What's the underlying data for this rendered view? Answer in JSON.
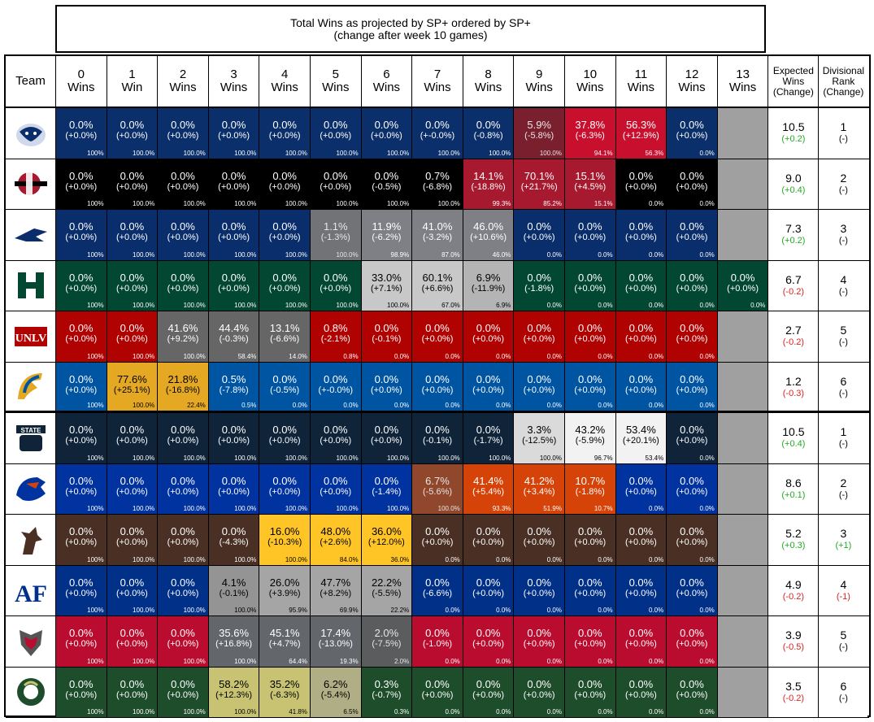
{
  "chart_data": {
    "type": "table",
    "title": "Total Wins as projected by SP+ ordered by SP+",
    "subtitle": "(change after week 10 games)",
    "headers": {
      "team": "Team",
      "wins": [
        [
          "0",
          "Wins"
        ],
        [
          "1",
          "Win"
        ],
        [
          "2",
          "Wins"
        ],
        [
          "3",
          "Wins"
        ],
        [
          "4",
          "Wins"
        ],
        [
          "5",
          "Wins"
        ],
        [
          "6",
          "Wins"
        ],
        [
          "7",
          "Wins"
        ],
        [
          "8",
          "Wins"
        ],
        [
          "9",
          "Wins"
        ],
        [
          "10",
          "Wins"
        ],
        [
          "11",
          "Wins"
        ],
        [
          "12",
          "Wins"
        ],
        [
          "13",
          "Wins"
        ]
      ],
      "expected": [
        "Expected",
        "Wins",
        "(Change)"
      ],
      "rank": [
        "Divisional",
        "Rank",
        "(Change)"
      ]
    },
    "colors": {
      "positive": "#22aa22",
      "negative": "#dd2222",
      "neutral": "#000000",
      "empty": "#a0a0a0"
    },
    "teams": [
      {
        "logo": "fresno-state-bulldog-logo",
        "base": "#0b2f6a",
        "hi": "#c8102e",
        "hi_text": "#ffffff",
        "expected": "10.5",
        "exp_change": "(+0.2)",
        "exp_sign": "pos",
        "rank": "1",
        "rank_change": "(-)",
        "rank_sign": "neu",
        "cells": [
          [
            "0.0%",
            "(+0.0%)",
            "100%"
          ],
          [
            "0.0%",
            "(+0.0%)",
            "100.0%"
          ],
          [
            "0.0%",
            "(+0.0%)",
            "100.0%"
          ],
          [
            "0.0%",
            "(+0.0%)",
            "100.0%"
          ],
          [
            "0.0%",
            "(+0.0%)",
            "100.0%"
          ],
          [
            "0.0%",
            "(+0.0%)",
            "100.0%"
          ],
          [
            "0.0%",
            "(+0.0%)",
            "100.0%"
          ],
          [
            "0.0%",
            "(+-0.0%)",
            "100.0%"
          ],
          [
            "0.0%",
            "(-0.8%)",
            "100.0%"
          ],
          [
            "5.9%",
            "(-5.8%)",
            "100.0%"
          ],
          [
            "37.8%",
            "(-6.3%)",
            "94.1%"
          ],
          [
            "56.3%",
            "(+12.9%)",
            "56.3%"
          ],
          [
            "0.0%",
            "(+0.0%)",
            "0.0%"
          ],
          null
        ]
      },
      {
        "logo": "san-diego-state-logo",
        "base": "#000000",
        "hi": "#a6192e",
        "hi_text": "#ffffff",
        "expected": "9.0",
        "exp_change": "(+0.4)",
        "exp_sign": "pos",
        "rank": "2",
        "rank_change": "(-)",
        "rank_sign": "neu",
        "cells": [
          [
            "0.0%",
            "(+0.0%)",
            "100%"
          ],
          [
            "0.0%",
            "(+0.0%)",
            "100.0%"
          ],
          [
            "0.0%",
            "(+0.0%)",
            "100.0%"
          ],
          [
            "0.0%",
            "(+0.0%)",
            "100.0%"
          ],
          [
            "0.0%",
            "(+0.0%)",
            "100.0%"
          ],
          [
            "0.0%",
            "(+0.0%)",
            "100.0%"
          ],
          [
            "0.0%",
            "(-0.5%)",
            "100.0%"
          ],
          [
            "0.7%",
            "(-6.8%)",
            "100.0%"
          ],
          [
            "14.1%",
            "(-18.8%)",
            "99.3%"
          ],
          [
            "70.1%",
            "(+21.7%)",
            "85.2%"
          ],
          [
            "15.1%",
            "(+4.5%)",
            "15.1%"
          ],
          [
            "0.0%",
            "(+0.0%)",
            "0.0%"
          ],
          [
            "0.0%",
            "(+0.0%)",
            "0.0%"
          ],
          null
        ]
      },
      {
        "logo": "nevada-wolf-logo",
        "base": "#0a2e6c",
        "hi": "#7e8086",
        "hi_text": "#ffffff",
        "expected": "7.3",
        "exp_change": "(+0.2)",
        "exp_sign": "pos",
        "rank": "3",
        "rank_change": "(-)",
        "rank_sign": "neu",
        "cells": [
          [
            "0.0%",
            "(+0.0%)",
            "100%"
          ],
          [
            "0.0%",
            "(+0.0%)",
            "100.0%"
          ],
          [
            "0.0%",
            "(+0.0%)",
            "100.0%"
          ],
          [
            "0.0%",
            "(+0.0%)",
            "100.0%"
          ],
          [
            "0.0%",
            "(+0.0%)",
            "100.0%"
          ],
          [
            "1.1%",
            "(-1.3%)",
            "100.0%"
          ],
          [
            "11.9%",
            "(-6.2%)",
            "98.9%"
          ],
          [
            "41.0%",
            "(-3.2%)",
            "87.0%"
          ],
          [
            "46.0%",
            "(+10.6%)",
            "46.0%"
          ],
          [
            "0.0%",
            "(+0.0%)",
            "0.0%"
          ],
          [
            "0.0%",
            "(+0.0%)",
            "0.0%"
          ],
          [
            "0.0%",
            "(+0.0%)",
            "0.0%"
          ],
          [
            "0.0%",
            "(+0.0%)",
            "0.0%"
          ],
          null
        ]
      },
      {
        "logo": "hawaii-h-logo",
        "base": "#024731",
        "hi": "#c8c8c8",
        "hi_text": "#000000",
        "expected": "6.7",
        "exp_change": "(-0.2)",
        "exp_sign": "neg",
        "rank": "4",
        "rank_change": "(-)",
        "rank_sign": "neu",
        "cells": [
          [
            "0.0%",
            "(+0.0%)",
            "100%"
          ],
          [
            "0.0%",
            "(+0.0%)",
            "100.0%"
          ],
          [
            "0.0%",
            "(+0.0%)",
            "100.0%"
          ],
          [
            "0.0%",
            "(+0.0%)",
            "100.0%"
          ],
          [
            "0.0%",
            "(+0.0%)",
            "100.0%"
          ],
          [
            "0.0%",
            "(+0.0%)",
            "100.0%"
          ],
          [
            "33.0%",
            "(+7.1%)",
            "100.0%"
          ],
          [
            "60.1%",
            "(+6.6%)",
            "67.0%"
          ],
          [
            "6.9%",
            "(-11.9%)",
            "6.9%"
          ],
          [
            "0.0%",
            "(-1.8%)",
            "0.0%"
          ],
          [
            "0.0%",
            "(+0.0%)",
            "0.0%"
          ],
          [
            "0.0%",
            "(+0.0%)",
            "0.0%"
          ],
          [
            "0.0%",
            "(+0.0%)",
            "0.0%"
          ],
          [
            "0.0%",
            "(+0.0%)",
            "0.0%"
          ]
        ]
      },
      {
        "logo": "unlv-logo",
        "base": "#b10202",
        "hi": "#666666",
        "hi_text": "#ffffff",
        "expected": "2.7",
        "exp_change": "(-0.2)",
        "exp_sign": "neg",
        "rank": "5",
        "rank_change": "(-)",
        "rank_sign": "neu",
        "cells": [
          [
            "0.0%",
            "(+0.0%)",
            "100%"
          ],
          [
            "0.0%",
            "(+0.0%)",
            "100.0%"
          ],
          [
            "41.6%",
            "(+9.2%)",
            "100.0%"
          ],
          [
            "44.4%",
            "(-0.3%)",
            "58.4%"
          ],
          [
            "13.1%",
            "(-6.6%)",
            "14.0%"
          ],
          [
            "0.8%",
            "(-2.1%)",
            "0.8%"
          ],
          [
            "0.0%",
            "(-0.1%)",
            "0.0%"
          ],
          [
            "0.0%",
            "(+0.0%)",
            "0.0%"
          ],
          [
            "0.0%",
            "(+0.0%)",
            "0.0%"
          ],
          [
            "0.0%",
            "(+0.0%)",
            "0.0%"
          ],
          [
            "0.0%",
            "(+0.0%)",
            "0.0%"
          ],
          [
            "0.0%",
            "(+0.0%)",
            "0.0%"
          ],
          [
            "0.0%",
            "(+0.0%)",
            "0.0%"
          ],
          null
        ]
      },
      {
        "logo": "san-jose-state-spartan-logo",
        "base": "#0055a2",
        "hi": "#e5a823",
        "hi_text": "#000000",
        "expected": "1.2",
        "exp_change": "(-0.3)",
        "exp_sign": "neg",
        "rank": "6",
        "rank_change": "(-)",
        "rank_sign": "neu",
        "cells": [
          [
            "0.0%",
            "(+0.0%)",
            "100%"
          ],
          [
            "77.6%",
            "(+25.1%)",
            "100.0%"
          ],
          [
            "21.8%",
            "(-16.8%)",
            "22.4%"
          ],
          [
            "0.5%",
            "(-7.8%)",
            "0.5%"
          ],
          [
            "0.0%",
            "(-0.5%)",
            "0.0%"
          ],
          [
            "0.0%",
            "(+-0.0%)",
            "0.0%"
          ],
          [
            "0.0%",
            "(+0.0%)",
            "0.0%"
          ],
          [
            "0.0%",
            "(+0.0%)",
            "0.0%"
          ],
          [
            "0.0%",
            "(+0.0%)",
            "0.0%"
          ],
          [
            "0.0%",
            "(+0.0%)",
            "0.0%"
          ],
          [
            "0.0%",
            "(+0.0%)",
            "0.0%"
          ],
          [
            "0.0%",
            "(+0.0%)",
            "0.0%"
          ],
          [
            "0.0%",
            "(+0.0%)",
            "0.0%"
          ],
          null
        ]
      },
      {
        "logo": "utah-state-logo",
        "base": "#0f2439",
        "hi": "#f2f2f2",
        "hi_text": "#000000",
        "expected": "10.5",
        "exp_change": "(+0.4)",
        "exp_sign": "pos",
        "rank": "1",
        "rank_change": "(-)",
        "rank_sign": "neu",
        "cells": [
          [
            "0.0%",
            "(+0.0%)",
            "100%"
          ],
          [
            "0.0%",
            "(+0.0%)",
            "100.0%"
          ],
          [
            "0.0%",
            "(+0.0%)",
            "100.0%"
          ],
          [
            "0.0%",
            "(+0.0%)",
            "100.0%"
          ],
          [
            "0.0%",
            "(+0.0%)",
            "100.0%"
          ],
          [
            "0.0%",
            "(+0.0%)",
            "100.0%"
          ],
          [
            "0.0%",
            "(+0.0%)",
            "100.0%"
          ],
          [
            "0.0%",
            "(-0.1%)",
            "100.0%"
          ],
          [
            "0.0%",
            "(-1.7%)",
            "100.0%"
          ],
          [
            "3.3%",
            "(-12.5%)",
            "100.0%"
          ],
          [
            "43.2%",
            "(-5.9%)",
            "96.7%"
          ],
          [
            "53.4%",
            "(+20.1%)",
            "53.4%"
          ],
          [
            "0.0%",
            "(+0.0%)",
            "0.0%"
          ],
          null
        ]
      },
      {
        "logo": "boise-state-bronco-logo",
        "base": "#0033a0",
        "hi": "#d64309",
        "hi_text": "#ffffff",
        "expected": "8.6",
        "exp_change": "(+0.1)",
        "exp_sign": "pos",
        "rank": "2",
        "rank_change": "(-)",
        "rank_sign": "neu",
        "cells": [
          [
            "0.0%",
            "(+0.0%)",
            "100%"
          ],
          [
            "0.0%",
            "(+0.0%)",
            "100.0%"
          ],
          [
            "0.0%",
            "(+0.0%)",
            "100.0%"
          ],
          [
            "0.0%",
            "(+0.0%)",
            "100.0%"
          ],
          [
            "0.0%",
            "(+0.0%)",
            "100.0%"
          ],
          [
            "0.0%",
            "(+0.0%)",
            "100.0%"
          ],
          [
            "0.0%",
            "(-1.4%)",
            "100.0%"
          ],
          [
            "6.7%",
            "(-5.6%)",
            "100.0%"
          ],
          [
            "41.4%",
            "(+5.4%)",
            "93.3%"
          ],
          [
            "41.2%",
            "(+3.4%)",
            "51.9%"
          ],
          [
            "10.7%",
            "(-1.8%)",
            "10.7%"
          ],
          [
            "0.0%",
            "(+0.0%)",
            "0.0%"
          ],
          [
            "0.0%",
            "(+0.0%)",
            "0.0%"
          ],
          null
        ]
      },
      {
        "logo": "wyoming-cowboy-logo",
        "base": "#492f24",
        "hi": "#ffc425",
        "hi_text": "#000000",
        "expected": "5.2",
        "exp_change": "(+0.3)",
        "exp_sign": "pos",
        "rank": "3",
        "rank_change": "(+1)",
        "rank_sign": "pos",
        "cells": [
          [
            "0.0%",
            "(+0.0%)",
            "100%"
          ],
          [
            "0.0%",
            "(+0.0%)",
            "100.0%"
          ],
          [
            "0.0%",
            "(+0.0%)",
            "100.0%"
          ],
          [
            "0.0%",
            "(-4.3%)",
            "100.0%"
          ],
          [
            "16.0%",
            "(-10.3%)",
            "100.0%"
          ],
          [
            "48.0%",
            "(+2.6%)",
            "84.0%"
          ],
          [
            "36.0%",
            "(+12.0%)",
            "36.0%"
          ],
          [
            "0.0%",
            "(+0.0%)",
            "0.0%"
          ],
          [
            "0.0%",
            "(+0.0%)",
            "0.0%"
          ],
          [
            "0.0%",
            "(+0.0%)",
            "0.0%"
          ],
          [
            "0.0%",
            "(+0.0%)",
            "0.0%"
          ],
          [
            "0.0%",
            "(+0.0%)",
            "0.0%"
          ],
          [
            "0.0%",
            "(+0.0%)",
            "0.0%"
          ],
          null
        ]
      },
      {
        "logo": "air-force-af-logo",
        "base": "#003087",
        "hi": "#a5a5a5",
        "hi_text": "#000000",
        "expected": "4.9",
        "exp_change": "(-0.2)",
        "exp_sign": "neg",
        "rank": "4",
        "rank_change": "(-1)",
        "rank_sign": "neg",
        "cells": [
          [
            "0.0%",
            "(+0.0%)",
            "100%"
          ],
          [
            "0.0%",
            "(+0.0%)",
            "100.0%"
          ],
          [
            "0.0%",
            "(+0.0%)",
            "100.0%"
          ],
          [
            "4.1%",
            "(-0.1%)",
            "100.0%"
          ],
          [
            "26.0%",
            "(+3.9%)",
            "95.9%"
          ],
          [
            "47.7%",
            "(+8.2%)",
            "69.9%"
          ],
          [
            "22.2%",
            "(-5.5%)",
            "22.2%"
          ],
          [
            "0.0%",
            "(-6.6%)",
            "0.0%"
          ],
          [
            "0.0%",
            "(+0.0%)",
            "0.0%"
          ],
          [
            "0.0%",
            "(+0.0%)",
            "0.0%"
          ],
          [
            "0.0%",
            "(+0.0%)",
            "0.0%"
          ],
          [
            "0.0%",
            "(+0.0%)",
            "0.0%"
          ],
          [
            "0.0%",
            "(+0.0%)",
            "0.0%"
          ],
          null
        ]
      },
      {
        "logo": "new-mexico-lobo-logo",
        "base": "#ba0c2f",
        "hi": "#63666a",
        "hi_text": "#ffffff",
        "expected": "3.9",
        "exp_change": "(-0.5)",
        "exp_sign": "neg",
        "rank": "5",
        "rank_change": "(-)",
        "rank_sign": "neu",
        "cells": [
          [
            "0.0%",
            "(+0.0%)",
            "100%"
          ],
          [
            "0.0%",
            "(+0.0%)",
            "100.0%"
          ],
          [
            "0.0%",
            "(+0.0%)",
            "100.0%"
          ],
          [
            "35.6%",
            "(+16.8%)",
            "100.0%"
          ],
          [
            "45.1%",
            "(+4.7%)",
            "64.4%"
          ],
          [
            "17.4%",
            "(-13.0%)",
            "19.3%"
          ],
          [
            "2.0%",
            "(-7.5%)",
            "2.0%"
          ],
          [
            "0.0%",
            "(-1.0%)",
            "0.0%"
          ],
          [
            "0.0%",
            "(+0.0%)",
            "0.0%"
          ],
          [
            "0.0%",
            "(+0.0%)",
            "0.0%"
          ],
          [
            "0.0%",
            "(+0.0%)",
            "0.0%"
          ],
          [
            "0.0%",
            "(+0.0%)",
            "0.0%"
          ],
          [
            "0.0%",
            "(+0.0%)",
            "0.0%"
          ],
          null
        ]
      },
      {
        "logo": "colorado-state-ram-logo",
        "base": "#1e4d2b",
        "hi": "#c8c372",
        "hi_text": "#000000",
        "expected": "3.5",
        "exp_change": "(-0.2)",
        "exp_sign": "neg",
        "rank": "6",
        "rank_change": "(-)",
        "rank_sign": "neu",
        "cells": [
          [
            "0.0%",
            "(+0.0%)",
            "100%"
          ],
          [
            "0.0%",
            "(+0.0%)",
            "100.0%"
          ],
          [
            "0.0%",
            "(+0.0%)",
            "100.0%"
          ],
          [
            "58.2%",
            "(+12.3%)",
            "100.0%"
          ],
          [
            "35.2%",
            "(-6.3%)",
            "41.8%"
          ],
          [
            "6.2%",
            "(-5.4%)",
            "6.5%"
          ],
          [
            "0.3%",
            "(-0.7%)",
            "0.3%"
          ],
          [
            "0.0%",
            "(+0.0%)",
            "0.0%"
          ],
          [
            "0.0%",
            "(+0.0%)",
            "0.0%"
          ],
          [
            "0.0%",
            "(+0.0%)",
            "0.0%"
          ],
          [
            "0.0%",
            "(+0.0%)",
            "0.0%"
          ],
          [
            "0.0%",
            "(+0.0%)",
            "0.0%"
          ],
          [
            "0.0%",
            "(+0.0%)",
            "0.0%"
          ],
          null
        ]
      }
    ]
  }
}
